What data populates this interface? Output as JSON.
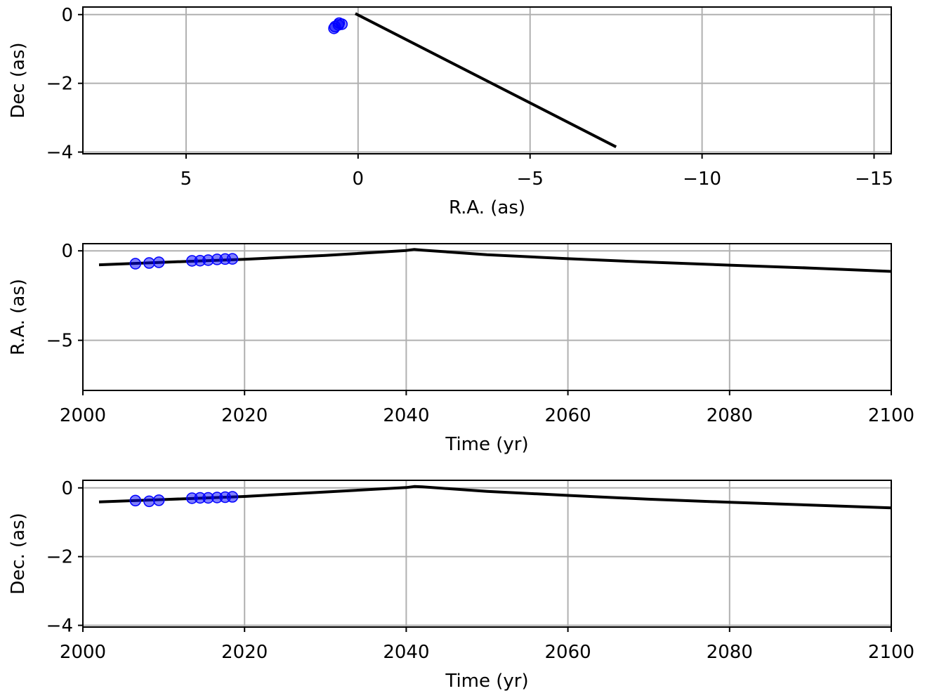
{
  "chart_data": [
    {
      "type": "line",
      "xlabel": "R.A. (as)",
      "ylabel": "Dec (as)",
      "xlim": [
        8.0,
        -15.5
      ],
      "ylim": [
        -4.05,
        0.22
      ],
      "xticks": [
        5,
        0,
        -5,
        -10,
        -15
      ],
      "xtick_labels": [
        "5",
        "0",
        "−5",
        "−10",
        "−15"
      ],
      "yticks": [
        0,
        -2,
        -4
      ],
      "ytick_labels": [
        "0",
        "−2",
        "−4"
      ],
      "grid": true,
      "model_x": [
        0.08,
        -7.5
      ],
      "model_y": [
        0.03,
        -3.85
      ],
      "obs_x": [
        0.47,
        0.57,
        0.67,
        0.7,
        0.55
      ],
      "obs_y": [
        -0.28,
        -0.3,
        -0.35,
        -0.4,
        -0.25
      ]
    },
    {
      "type": "line",
      "xlabel": "Time (yr)",
      "ylabel": "R.A. (as)",
      "xlim": [
        2000,
        2100
      ],
      "ylim": [
        -7.8,
        0.4
      ],
      "xticks": [
        2000,
        2020,
        2040,
        2060,
        2080,
        2100
      ],
      "xtick_labels": [
        "2000",
        "2020",
        "2040",
        "2060",
        "2080",
        "2100"
      ],
      "yticks": [
        0,
        -5
      ],
      "ytick_labels": [
        "0",
        "−5"
      ],
      "grid": true,
      "model_x": [
        2002,
        2010,
        2020,
        2030,
        2040,
        2041,
        2042,
        2050,
        2060,
        2070,
        2080,
        2090,
        2100
      ],
      "model_y": [
        -0.78,
        -0.64,
        -0.47,
        -0.26,
        0.02,
        0.08,
        0.04,
        -0.22,
        -0.44,
        -0.63,
        -0.8,
        -0.96,
        -1.15
      ],
      "obs_x": [
        2006.5,
        2008.2,
        2009.4,
        2013.5,
        2014.5,
        2015.5,
        2016.6,
        2017.6,
        2018.5
      ],
      "obs_y": [
        -0.72,
        -0.68,
        -0.64,
        -0.56,
        -0.55,
        -0.52,
        -0.48,
        -0.46,
        -0.45
      ]
    },
    {
      "type": "line",
      "xlabel": "Time (yr)",
      "ylabel": "Dec. (as)",
      "xlim": [
        2000,
        2100
      ],
      "ylim": [
        -4.05,
        0.22
      ],
      "xticks": [
        2000,
        2020,
        2040,
        2060,
        2080,
        2100
      ],
      "xtick_labels": [
        "2000",
        "2020",
        "2040",
        "2060",
        "2080",
        "2100"
      ],
      "yticks": [
        0,
        -2,
        -4
      ],
      "ytick_labels": [
        "0",
        "−2",
        "−4"
      ],
      "grid": true,
      "model_x": [
        2002,
        2010,
        2020,
        2030,
        2040,
        2041,
        2042,
        2050,
        2060,
        2070,
        2080,
        2090,
        2100
      ],
      "model_y": [
        -0.41,
        -0.34,
        -0.25,
        -0.12,
        0.01,
        0.04,
        0.03,
        -0.1,
        -0.22,
        -0.33,
        -0.42,
        -0.5,
        -0.58
      ],
      "obs_x": [
        2006.5,
        2008.2,
        2009.4,
        2013.5,
        2014.5,
        2015.5,
        2016.6,
        2017.6,
        2018.5
      ],
      "obs_y": [
        -0.37,
        -0.39,
        -0.36,
        -0.3,
        -0.29,
        -0.29,
        -0.28,
        -0.27,
        -0.26
      ]
    }
  ]
}
